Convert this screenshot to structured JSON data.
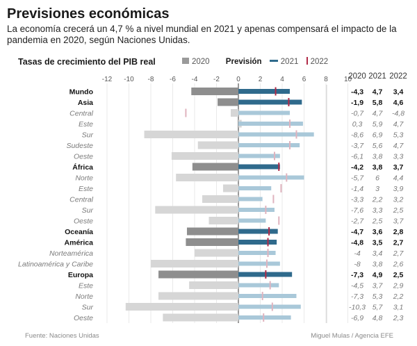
{
  "title": "Previsiones económicas",
  "subtitle": "La economía crecerá un 4,7 % a nivel mundial en 2021 y apenas compensará el impacto de la pandemia en 2020, según Naciones Unidas.",
  "source": "Fuente: Naciones Unidas",
  "credit": "Miguel Mulas / Agencia EFE",
  "legend": {
    "s2020": "2020",
    "prevision": "Previsión",
    "s2021": "2021",
    "s2022": "2022"
  },
  "colors": {
    "bar_2020_bold": "#8e8e8e",
    "bar_2020_light": "#d6d6d6",
    "bar_2021_bold": "#2f6a8c",
    "bar_2021_light": "#a9c8d9",
    "marker_2022_bold": "#b02a47",
    "marker_2022_light": "#e0b3be"
  },
  "chart_data": {
    "type": "bar",
    "title": "Tasas de crecimiento del PIB real",
    "orientation": "horizontal",
    "xlim": [
      -12,
      12
    ],
    "x_ticks": [
      -12,
      -10,
      -8,
      -6,
      -4,
      -2,
      0,
      2,
      4,
      6,
      8,
      10
    ],
    "x_tick_labels": [
      "-12",
      "-10",
      "-8",
      "-6",
      "-4",
      "-2",
      "0",
      "2",
      "4",
      "6",
      "8",
      "10"
    ],
    "grid": true,
    "legend_position": "top",
    "table_headers": [
      "2020",
      "2021",
      "2022"
    ],
    "categories": [
      "Mundo",
      "Asia",
      "Central",
      "Este",
      "Sur",
      "Sudeste",
      "Oeste",
      "África",
      "Norte",
      "Este",
      "Central",
      "Sur",
      "Oeste",
      "Oceanía",
      "América",
      "Norteamérica",
      "Latinoamérica y Caribe",
      "Europa",
      "Este",
      "Norte",
      "Sur",
      "Oeste"
    ],
    "bold": [
      true,
      true,
      false,
      false,
      false,
      false,
      false,
      true,
      false,
      false,
      false,
      false,
      false,
      true,
      true,
      false,
      false,
      true,
      false,
      false,
      false,
      false
    ],
    "series": [
      {
        "name": "2020",
        "values": [
          -4.3,
          -1.9,
          -0.7,
          0.3,
          -8.6,
          -3.7,
          -6.1,
          -4.2,
          -5.7,
          -1.4,
          -3.3,
          -7.6,
          -2.7,
          -4.7,
          -4.8,
          -4,
          -8,
          -7.3,
          -4.5,
          -7.3,
          -10.3,
          -6.9
        ],
        "labels": [
          "-4,3",
          "-1,9",
          "-0,7",
          "0,3",
          "-8,6",
          "-3,7",
          "-6,1",
          "-4,2",
          "-5,7",
          "-1,4",
          "-3,3",
          "-7,6",
          "-2,7",
          "-4,7",
          "-4,8",
          "-4",
          "-8",
          "-7,3",
          "-4,5",
          "-7,3",
          "-10,3",
          "-6,9"
        ]
      },
      {
        "name": "2021",
        "values": [
          4.7,
          5.8,
          4.7,
          5.9,
          6.9,
          5.6,
          3.8,
          3.8,
          6,
          3,
          2.2,
          3.3,
          2.5,
          3.6,
          3.5,
          3.4,
          3.8,
          4.9,
          3.7,
          5.3,
          5.7,
          4.8
        ],
        "labels": [
          "4,7",
          "5,8",
          "4,7",
          "5,9",
          "6,9",
          "5,6",
          "3,8",
          "3,8",
          "6",
          "3",
          "2,2",
          "3,3",
          "2,5",
          "3,6",
          "3,5",
          "3,4",
          "3,8",
          "4,9",
          "3,7",
          "5,3",
          "5,7",
          "4,8"
        ]
      },
      {
        "name": "2022",
        "values": [
          3.4,
          4.6,
          -4.8,
          4.7,
          5.3,
          4.7,
          3.3,
          3.7,
          4.4,
          3.9,
          3.2,
          2.5,
          3.7,
          2.8,
          2.7,
          2.7,
          2.6,
          2.5,
          2.9,
          2.2,
          3.1,
          2.3
        ],
        "labels": [
          "3,4",
          "4,6",
          "-4,8",
          "4,7",
          "5,3",
          "4,7",
          "3,3",
          "3,7",
          "4,4",
          "3,9",
          "3,2",
          "2,5",
          "3,7",
          "2,8",
          "2,7",
          "2,7",
          "2,6",
          "2,5",
          "2,9",
          "2,2",
          "3,1",
          "2,3"
        ]
      }
    ]
  }
}
